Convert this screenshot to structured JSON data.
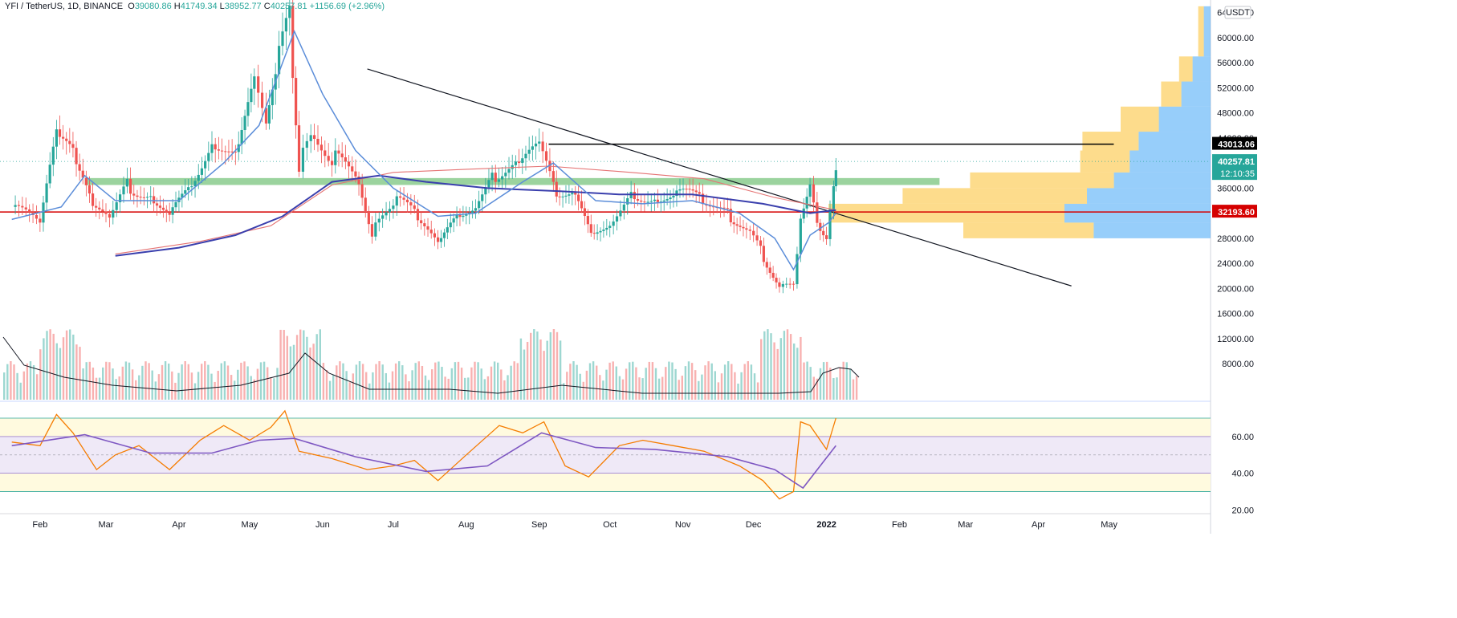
{
  "legend": {
    "symbol": "YFI / TetherUS, 1D, BINANCE",
    "open_label": "O",
    "open": "39080.86",
    "high_label": "H",
    "high": "41749.34",
    "low_label": "L",
    "low": "38952.77",
    "close_label": "C",
    "close": "40257.81",
    "change": "+1156.69 (+2.96%)"
  },
  "currency_badge": "USDT",
  "colors": {
    "up": "#26a69a",
    "down": "#ef5350",
    "ma_fast": "#5b8dd9",
    "ma_mid": "#3a3fad",
    "ma_slow": "#e57373",
    "support_zone": "#66bb6a",
    "red_line": "#d50000",
    "rsi": "#f57c00",
    "rsi_ma": "#7e57c2",
    "vp_up": "#42a5f5",
    "vp_down": "#fbc02d"
  },
  "price_labels": {
    "resistance": "43013.06",
    "current": "40257.81",
    "countdown": "12:10:35",
    "support": "32193.60"
  },
  "chart_data": {
    "type": "candlestick",
    "x_ticks": [
      "Feb",
      "Mar",
      "Apr",
      "May",
      "Jun",
      "Jul",
      "Aug",
      "Sep",
      "Oct",
      "Nov",
      "Dec",
      "2022",
      "Feb",
      "Mar",
      "Apr",
      "May"
    ],
    "price_ticks": [
      "64000.00",
      "60000.00",
      "56000.00",
      "52000.00",
      "48000.00",
      "44000.00",
      "40000.00",
      "36000.00",
      "32000.00",
      "28000.00",
      "24000.00",
      "20000.00",
      "16000.00",
      "12000.00",
      "8000.00"
    ],
    "rsi_ticks": [
      "60.00",
      "40.00",
      "20.00"
    ],
    "ylim": [
      2000,
      66000
    ],
    "rsi_ylim": [
      18,
      77
    ],
    "rsi_bands": [
      30,
      40,
      50,
      60,
      70
    ],
    "key_levels": {
      "resistance": 43013.06,
      "support": 32193.6
    },
    "support_zone": [
      36500,
      37600
    ],
    "trendline": {
      "from": [
        "2021-06-20",
        55000
      ],
      "to": [
        "2022-04-15",
        20400
      ]
    },
    "trendline2": {
      "from": [
        "2021-09-05",
        43013.06
      ],
      "to": [
        "2022-05-03",
        43013.06
      ]
    },
    "closes": [
      {
        "x": "2021-01-20",
        "y": 33000
      },
      {
        "x": "2021-02-01",
        "y": 30000
      },
      {
        "x": "2021-02-08",
        "y": 44000
      },
      {
        "x": "2021-02-15",
        "y": 41000
      },
      {
        "x": "2021-02-22",
        "y": 34000
      },
      {
        "x": "2021-03-01",
        "y": 31000
      },
      {
        "x": "2021-03-10",
        "y": 36500
      },
      {
        "x": "2021-03-20",
        "y": 35000
      },
      {
        "x": "2021-03-28",
        "y": 31000
      },
      {
        "x": "2021-04-05",
        "y": 36000
      },
      {
        "x": "2021-04-15",
        "y": 44000
      },
      {
        "x": "2021-04-25",
        "y": 41000
      },
      {
        "x": "2021-05-03",
        "y": 52000
      },
      {
        "x": "2021-05-08",
        "y": 46000
      },
      {
        "x": "2021-05-12",
        "y": 55000
      },
      {
        "x": "2021-05-18",
        "y": 63000
      },
      {
        "x": "2021-05-22",
        "y": 40000
      },
      {
        "x": "2021-05-27",
        "y": 44000
      },
      {
        "x": "2021-06-05",
        "y": 41000
      },
      {
        "x": "2021-06-15",
        "y": 38000
      },
      {
        "x": "2021-06-22",
        "y": 29000
      },
      {
        "x": "2021-07-01",
        "y": 34000
      },
      {
        "x": "2021-07-10",
        "y": 32000
      },
      {
        "x": "2021-07-20",
        "y": 26500
      },
      {
        "x": "2021-07-28",
        "y": 31000
      },
      {
        "x": "2021-08-05",
        "y": 34000
      },
      {
        "x": "2021-08-12",
        "y": 38000
      },
      {
        "x": "2021-08-22",
        "y": 39500
      },
      {
        "x": "2021-09-01",
        "y": 42000
      },
      {
        "x": "2021-09-07",
        "y": 36000
      },
      {
        "x": "2021-09-15",
        "y": 35500
      },
      {
        "x": "2021-09-23",
        "y": 28000
      },
      {
        "x": "2021-10-01",
        "y": 31000
      },
      {
        "x": "2021-10-10",
        "y": 35000
      },
      {
        "x": "2021-10-20",
        "y": 35000
      },
      {
        "x": "2021-10-28",
        "y": 34500
      },
      {
        "x": "2021-11-08",
        "y": 35000
      },
      {
        "x": "2021-11-20",
        "y": 32000
      },
      {
        "x": "2021-11-28",
        "y": 29000
      },
      {
        "x": "2021-12-04",
        "y": 26000
      },
      {
        "x": "2021-12-12",
        "y": 20500
      },
      {
        "x": "2021-12-18",
        "y": 20000
      },
      {
        "x": "2021-12-21",
        "y": 32000
      },
      {
        "x": "2021-12-25",
        "y": 37000
      },
      {
        "x": "2021-12-28",
        "y": 31000
      },
      {
        "x": "2022-01-01",
        "y": 28500
      },
      {
        "x": "2022-01-04",
        "y": 36500
      },
      {
        "x": "2022-01-05",
        "y": 40257.81
      }
    ],
    "ma20": [
      {
        "x": "2021-01-20",
        "y": 31000
      },
      {
        "x": "2021-02-10",
        "y": 33000
      },
      {
        "x": "2021-02-20",
        "y": 38000
      },
      {
        "x": "2021-03-05",
        "y": 34000
      },
      {
        "x": "2021-04-01",
        "y": 34000
      },
      {
        "x": "2021-04-20",
        "y": 40000
      },
      {
        "x": "2021-05-05",
        "y": 46000
      },
      {
        "x": "2021-05-20",
        "y": 61000
      },
      {
        "x": "2021-06-01",
        "y": 51000
      },
      {
        "x": "2021-06-15",
        "y": 42000
      },
      {
        "x": "2021-07-01",
        "y": 36000
      },
      {
        "x": "2021-07-20",
        "y": 31500
      },
      {
        "x": "2021-08-05",
        "y": 32000
      },
      {
        "x": "2021-08-25",
        "y": 37000
      },
      {
        "x": "2021-09-07",
        "y": 40000
      },
      {
        "x": "2021-09-25",
        "y": 34000
      },
      {
        "x": "2021-10-15",
        "y": 33500
      },
      {
        "x": "2021-11-05",
        "y": 34000
      },
      {
        "x": "2021-11-25",
        "y": 32000
      },
      {
        "x": "2021-12-10",
        "y": 28000
      },
      {
        "x": "2021-12-18",
        "y": 23000
      },
      {
        "x": "2021-12-25",
        "y": 28500
      },
      {
        "x": "2022-01-02",
        "y": 30500
      },
      {
        "x": "2022-01-05",
        "y": 32000
      }
    ],
    "ma100": [
      {
        "x": "2021-03-05",
        "y": 25200
      },
      {
        "x": "2021-04-01",
        "y": 26500
      },
      {
        "x": "2021-04-25",
        "y": 28500
      },
      {
        "x": "2021-05-15",
        "y": 31500
      },
      {
        "x": "2021-06-05",
        "y": 37000
      },
      {
        "x": "2021-06-25",
        "y": 38000
      },
      {
        "x": "2021-07-15",
        "y": 37000
      },
      {
        "x": "2021-08-10",
        "y": 36000
      },
      {
        "x": "2021-09-10",
        "y": 35500
      },
      {
        "x": "2021-10-05",
        "y": 35000
      },
      {
        "x": "2021-11-05",
        "y": 35000
      },
      {
        "x": "2021-12-05",
        "y": 33500
      },
      {
        "x": "2021-12-25",
        "y": 32000
      },
      {
        "x": "2022-01-05",
        "y": 32500
      }
    ],
    "ma200": [
      {
        "x": "2021-03-05",
        "y": 25500
      },
      {
        "x": "2021-04-10",
        "y": 27500
      },
      {
        "x": "2021-05-10",
        "y": 30000
      },
      {
        "x": "2021-06-05",
        "y": 36500
      },
      {
        "x": "2021-07-01",
        "y": 38500
      },
      {
        "x": "2021-08-01",
        "y": 39000
      },
      {
        "x": "2021-09-05",
        "y": 39500
      },
      {
        "x": "2021-10-10",
        "y": 38500
      },
      {
        "x": "2021-11-10",
        "y": 37500
      },
      {
        "x": "2021-12-10",
        "y": 34500
      },
      {
        "x": "2022-01-05",
        "y": 32500
      }
    ],
    "rsi": [
      {
        "x": "2021-01-20",
        "y": 57
      },
      {
        "x": "2021-02-01",
        "y": 55
      },
      {
        "x": "2021-02-08",
        "y": 72
      },
      {
        "x": "2021-02-15",
        "y": 62
      },
      {
        "x": "2021-02-25",
        "y": 42
      },
      {
        "x": "2021-03-05",
        "y": 50
      },
      {
        "x": "2021-03-15",
        "y": 55
      },
      {
        "x": "2021-03-28",
        "y": 42
      },
      {
        "x": "2021-04-10",
        "y": 58
      },
      {
        "x": "2021-04-20",
        "y": 66
      },
      {
        "x": "2021-05-01",
        "y": 58
      },
      {
        "x": "2021-05-10",
        "y": 65
      },
      {
        "x": "2021-05-16",
        "y": 74
      },
      {
        "x": "2021-05-22",
        "y": 52
      },
      {
        "x": "2021-06-05",
        "y": 48
      },
      {
        "x": "2021-06-20",
        "y": 42
      },
      {
        "x": "2021-07-01",
        "y": 44
      },
      {
        "x": "2021-07-10",
        "y": 47
      },
      {
        "x": "2021-07-20",
        "y": 36
      },
      {
        "x": "2021-08-01",
        "y": 50
      },
      {
        "x": "2021-08-15",
        "y": 66
      },
      {
        "x": "2021-08-25",
        "y": 62
      },
      {
        "x": "2021-09-03",
        "y": 68
      },
      {
        "x": "2021-09-12",
        "y": 44
      },
      {
        "x": "2021-09-22",
        "y": 38
      },
      {
        "x": "2021-10-05",
        "y": 55
      },
      {
        "x": "2021-10-15",
        "y": 58
      },
      {
        "x": "2021-10-28",
        "y": 55
      },
      {
        "x": "2021-11-10",
        "y": 52
      },
      {
        "x": "2021-11-25",
        "y": 44
      },
      {
        "x": "2021-12-05",
        "y": 36
      },
      {
        "x": "2021-12-12",
        "y": 26
      },
      {
        "x": "2021-12-18",
        "y": 30
      },
      {
        "x": "2021-12-21",
        "y": 68
      },
      {
        "x": "2021-12-25",
        "y": 66
      },
      {
        "x": "2022-01-01",
        "y": 53
      },
      {
        "x": "2022-01-05",
        "y": 70
      }
    ],
    "rsi_ma": [
      {
        "x": "2021-01-20",
        "y": 55
      },
      {
        "x": "2021-02-20",
        "y": 61
      },
      {
        "x": "2021-03-20",
        "y": 51
      },
      {
        "x": "2021-04-15",
        "y": 51
      },
      {
        "x": "2021-05-05",
        "y": 58
      },
      {
        "x": "2021-05-20",
        "y": 59
      },
      {
        "x": "2021-06-15",
        "y": 49
      },
      {
        "x": "2021-07-15",
        "y": 41
      },
      {
        "x": "2021-08-10",
        "y": 44
      },
      {
        "x": "2021-09-02",
        "y": 62
      },
      {
        "x": "2021-09-25",
        "y": 54
      },
      {
        "x": "2021-10-20",
        "y": 53
      },
      {
        "x": "2021-11-20",
        "y": 49
      },
      {
        "x": "2021-12-10",
        "y": 42
      },
      {
        "x": "2021-12-22",
        "y": 32
      },
      {
        "x": "2022-01-05",
        "y": 55
      }
    ],
    "volume_profile": [
      {
        "price_low": 28000,
        "price_high": 30500,
        "up": 5200,
        "down": 5800
      },
      {
        "price_low": 30500,
        "price_high": 33500,
        "up": 6500,
        "down": 10500
      },
      {
        "price_low": 33500,
        "price_high": 36000,
        "up": 5500,
        "down": 8200
      },
      {
        "price_low": 36000,
        "price_high": 38500,
        "up": 4300,
        "down": 6400
      },
      {
        "price_low": 38500,
        "price_high": 42000,
        "up": 3600,
        "down": 2200
      },
      {
        "price_low": 42000,
        "price_high": 45000,
        "up": 3200,
        "down": 2500
      },
      {
        "price_low": 45000,
        "price_high": 49000,
        "up": 2300,
        "down": 1700
      },
      {
        "price_low": 49000,
        "price_high": 53000,
        "up": 1300,
        "down": 900
      },
      {
        "price_low": 53000,
        "price_high": 57000,
        "up": 800,
        "down": 600
      },
      {
        "price_low": 57000,
        "price_high": 65000,
        "up": 300,
        "down": 250
      }
    ]
  }
}
